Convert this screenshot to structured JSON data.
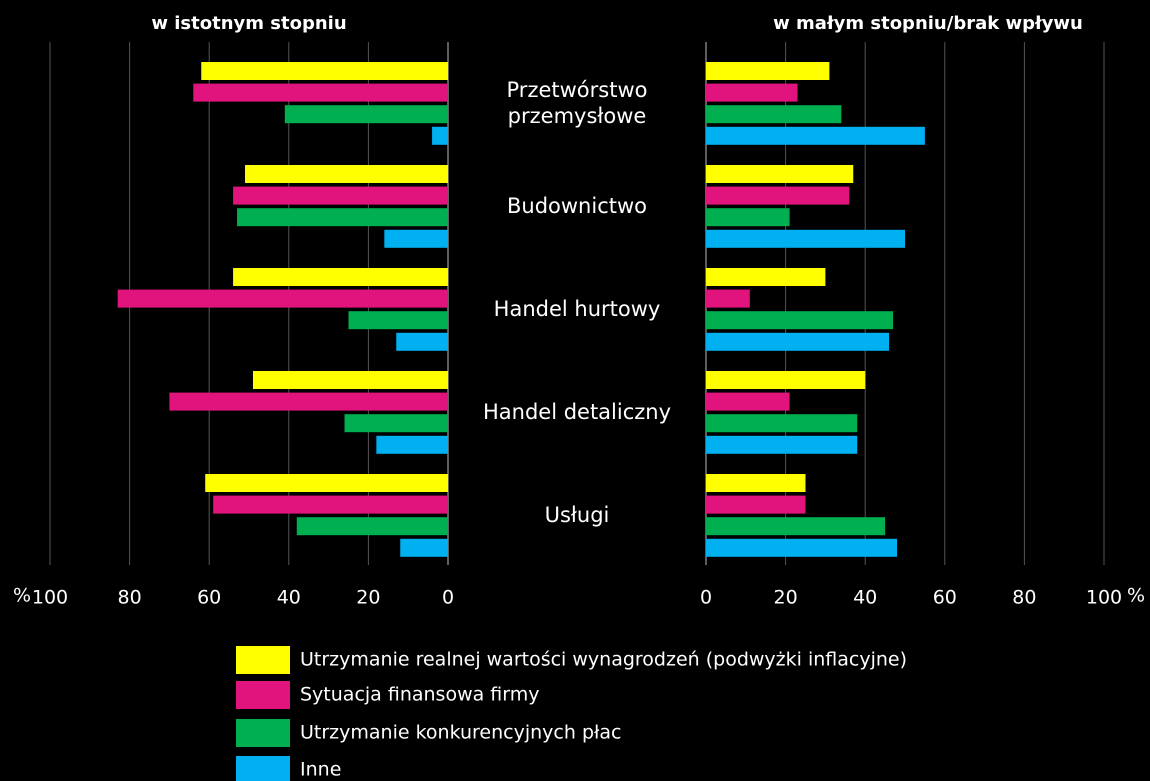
{
  "chart_data": {
    "type": "bar",
    "orientation": "horizontal",
    "unit": "%",
    "categories": [
      "Przetwórstwo przemysłowe",
      "Budownictwo",
      "Handel hurtowy",
      "Handel detaliczny",
      "Usługi"
    ],
    "series": [
      {
        "name": "Utrzymanie realnej wartości wynagrodzeń (podwyżki inflacyjne)",
        "color": "#ffff00"
      },
      {
        "name": "Sytuacja finansowa firmy",
        "color": "#e0147c"
      },
      {
        "name": "Utrzymanie konkurencyjnych płac",
        "color": "#00b050"
      },
      {
        "name": "Inne",
        "color": "#00b0f0"
      }
    ],
    "panels": [
      {
        "title": "w istotnym stopniu",
        "reversed": true,
        "xlim": [
          0,
          100
        ],
        "xticks": [
          0,
          20,
          40,
          60,
          80,
          100
        ],
        "grid": true,
        "values": [
          [
            62,
            51,
            54,
            49,
            61
          ],
          [
            64,
            54,
            83,
            70,
            59
          ],
          [
            41,
            53,
            25,
            26,
            38
          ],
          [
            4,
            16,
            13,
            18,
            12
          ]
        ]
      },
      {
        "title": "w małym stopniu/brak wpływu",
        "reversed": false,
        "xlim": [
          0,
          100
        ],
        "xticks": [
          0,
          20,
          40,
          60,
          80,
          100
        ],
        "grid": true,
        "values": [
          [
            31,
            37,
            30,
            40,
            25
          ],
          [
            23,
            36,
            11,
            21,
            25
          ],
          [
            34,
            21,
            47,
            38,
            45
          ],
          [
            55,
            50,
            46,
            38,
            48
          ]
        ]
      }
    ]
  }
}
